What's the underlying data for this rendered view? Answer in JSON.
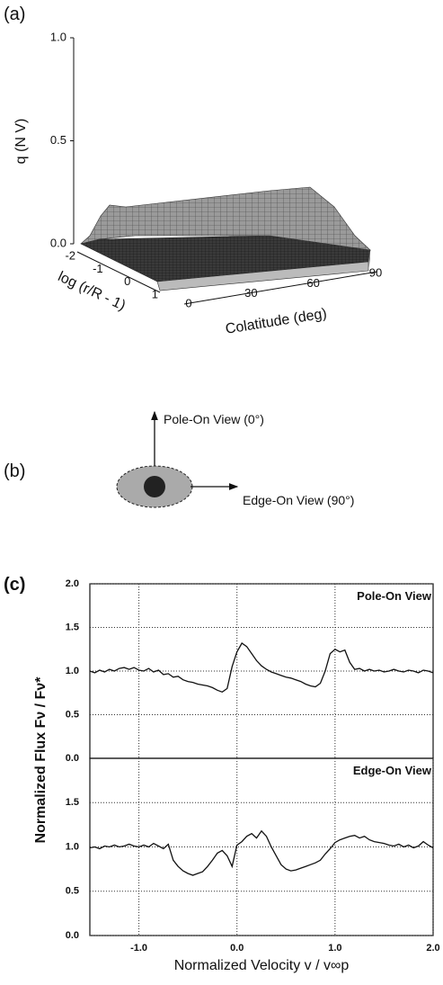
{
  "panel_labels": [
    "(a)",
    "(b)",
    "(c)"
  ],
  "diagram": {
    "pole_label": "Pole-On View (0°)",
    "edge_label": "Edge-On View (90°)"
  },
  "chart_data": [
    {
      "type": "surface",
      "zlabel": "q (N V)",
      "xlabel": "log (r/R - 1)",
      "ylabel": "Colatitude (deg)",
      "zlim": [
        0,
        1
      ],
      "zticks": [
        {
          "value": 0,
          "label": "0.0"
        },
        {
          "value": 0.5,
          "label": "0.5"
        },
        {
          "value": 1,
          "label": "1.0"
        }
      ],
      "xlim": [
        -2,
        1
      ],
      "xticks": [
        -2,
        -1,
        0,
        1
      ],
      "ylim": [
        0,
        90
      ],
      "yticks": [
        0,
        30,
        60,
        90
      ]
    },
    {
      "type": "line",
      "annotation": "Pole-On View",
      "ylabel": "Normalized Flux Fν / Fν*",
      "color": "#111111",
      "grid": true,
      "xlim": [
        -1.5,
        2.0
      ],
      "xticks": [
        -1,
        0,
        1
      ],
      "xtick_labels": false,
      "ylim": [
        0,
        2
      ],
      "yticks": [
        {
          "value": 0,
          "label": "0.0"
        },
        {
          "value": 0.5,
          "label": "0.5"
        },
        {
          "value": 1,
          "label": "1.0"
        },
        {
          "value": 1.5,
          "label": "1.5"
        },
        {
          "value": 2,
          "label": "2.0"
        }
      ],
      "x": [
        -1.5,
        -1.45,
        -1.4,
        -1.35,
        -1.3,
        -1.25,
        -1.2,
        -1.15,
        -1.1,
        -1.05,
        -1.0,
        -0.95,
        -0.9,
        -0.85,
        -0.8,
        -0.75,
        -0.7,
        -0.65,
        -0.6,
        -0.55,
        -0.5,
        -0.45,
        -0.4,
        -0.35,
        -0.3,
        -0.25,
        -0.2,
        -0.15,
        -0.1,
        -0.05,
        0.0,
        0.05,
        0.1,
        0.15,
        0.2,
        0.25,
        0.3,
        0.35,
        0.4,
        0.45,
        0.5,
        0.55,
        0.6,
        0.65,
        0.7,
        0.75,
        0.8,
        0.85,
        0.9,
        0.95,
        1.0,
        1.05,
        1.1,
        1.15,
        1.2,
        1.25,
        1.3,
        1.35,
        1.4,
        1.45,
        1.5,
        1.55,
        1.6,
        1.65,
        1.7,
        1.75,
        1.8,
        1.85,
        1.9,
        1.95,
        2.0
      ],
      "values": [
        1.0,
        0.98,
        1.01,
        0.99,
        1.02,
        1.0,
        1.03,
        1.04,
        1.02,
        1.04,
        1.01,
        1.0,
        1.03,
        0.99,
        1.01,
        0.96,
        0.97,
        0.93,
        0.94,
        0.9,
        0.88,
        0.87,
        0.85,
        0.84,
        0.83,
        0.81,
        0.78,
        0.76,
        0.8,
        1.05,
        1.22,
        1.32,
        1.28,
        1.2,
        1.12,
        1.06,
        1.02,
        0.99,
        0.97,
        0.95,
        0.93,
        0.92,
        0.9,
        0.88,
        0.85,
        0.83,
        0.82,
        0.86,
        1.0,
        1.2,
        1.25,
        1.22,
        1.24,
        1.1,
        1.02,
        1.03,
        1.0,
        1.02,
        1.0,
        1.01,
        0.99,
        1.0,
        1.02,
        1.0,
        0.99,
        1.01,
        1.0,
        0.98,
        1.01,
        1.0,
        0.98
      ]
    },
    {
      "type": "line",
      "annotation": "Edge-On View",
      "xlabel": "Normalized Velocity v / v∞p",
      "color": "#111111",
      "grid": true,
      "xlim": [
        -1.5,
        2.0
      ],
      "xticks": [
        {
          "value": -1,
          "label": "-1.0"
        },
        {
          "value": 0,
          "label": "0.0"
        },
        {
          "value": 1,
          "label": "1.0"
        },
        {
          "value": 2,
          "label": "2.0"
        }
      ],
      "xtick_labels": true,
      "ylim": [
        0,
        2
      ],
      "yticks": [
        {
          "value": 0,
          "label": "0.0"
        },
        {
          "value": 0.5,
          "label": "0.5"
        },
        {
          "value": 1,
          "label": "1.0"
        },
        {
          "value": 1.5,
          "label": "1.5"
        }
      ],
      "x": [
        -1.5,
        -1.45,
        -1.4,
        -1.35,
        -1.3,
        -1.25,
        -1.2,
        -1.15,
        -1.1,
        -1.05,
        -1.0,
        -0.95,
        -0.9,
        -0.85,
        -0.8,
        -0.75,
        -0.7,
        -0.65,
        -0.6,
        -0.55,
        -0.5,
        -0.45,
        -0.4,
        -0.35,
        -0.3,
        -0.25,
        -0.2,
        -0.15,
        -0.1,
        -0.05,
        0.0,
        0.05,
        0.1,
        0.15,
        0.2,
        0.25,
        0.3,
        0.35,
        0.4,
        0.45,
        0.5,
        0.55,
        0.6,
        0.65,
        0.7,
        0.75,
        0.8,
        0.85,
        0.9,
        0.95,
        1.0,
        1.05,
        1.1,
        1.15,
        1.2,
        1.25,
        1.3,
        1.35,
        1.4,
        1.45,
        1.5,
        1.55,
        1.6,
        1.65,
        1.7,
        1.75,
        1.8,
        1.85,
        1.9,
        1.95,
        2.0
      ],
      "values": [
        0.99,
        1.0,
        0.98,
        1.01,
        1.0,
        1.02,
        1.0,
        1.01,
        1.03,
        1.01,
        1.0,
        1.02,
        1.0,
        1.04,
        1.01,
        0.98,
        1.03,
        0.85,
        0.78,
        0.73,
        0.7,
        0.68,
        0.7,
        0.72,
        0.78,
        0.85,
        0.93,
        0.96,
        0.9,
        0.78,
        1.02,
        1.06,
        1.12,
        1.15,
        1.1,
        1.18,
        1.12,
        1.0,
        0.9,
        0.8,
        0.75,
        0.73,
        0.74,
        0.76,
        0.78,
        0.8,
        0.82,
        0.85,
        0.92,
        0.98,
        1.05,
        1.08,
        1.1,
        1.12,
        1.13,
        1.1,
        1.12,
        1.08,
        1.06,
        1.05,
        1.04,
        1.02,
        1.01,
        1.03,
        1.0,
        1.02,
        0.99,
        1.01,
        1.06,
        1.02,
        0.99
      ]
    }
  ]
}
